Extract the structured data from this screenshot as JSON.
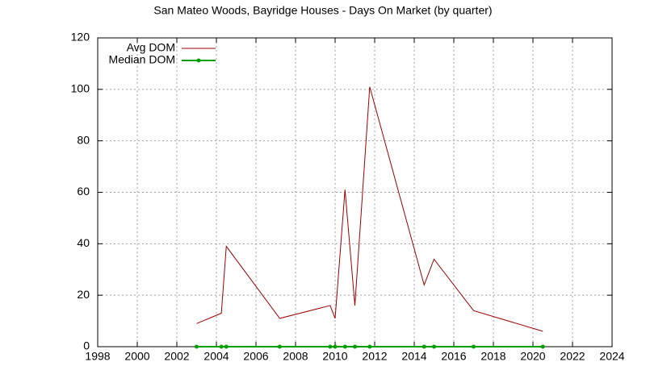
{
  "chart_data": {
    "type": "line",
    "title": "San Mateo Woods, Bayridge Houses - Days On Market (by quarter)",
    "x": [
      2003.0,
      2004.25,
      2004.5,
      2007.2,
      2009.75,
      2010.0,
      2010.5,
      2011.0,
      2011.75,
      2014.5,
      2015.0,
      2017.0,
      2020.5
    ],
    "series": [
      {
        "name": "Avg DOM",
        "color": "#a00000",
        "values": [
          9,
          13,
          39,
          11,
          16,
          11,
          61,
          16,
          101,
          24,
          34,
          14,
          6
        ],
        "markers": false
      },
      {
        "name": "Median DOM",
        "color": "#00a000",
        "values": [
          0,
          0,
          0,
          0,
          0,
          0,
          0,
          0,
          0,
          0,
          0,
          0,
          0
        ],
        "markers": true
      }
    ],
    "xlim": [
      1998,
      2024
    ],
    "xticks": [
      1998,
      2000,
      2002,
      2004,
      2006,
      2008,
      2010,
      2012,
      2014,
      2016,
      2018,
      2020,
      2022,
      2024
    ],
    "ylim": [
      0,
      120
    ],
    "yticks": [
      0,
      20,
      40,
      60,
      80,
      100,
      120
    ],
    "grid": true,
    "legend": "top-left"
  }
}
